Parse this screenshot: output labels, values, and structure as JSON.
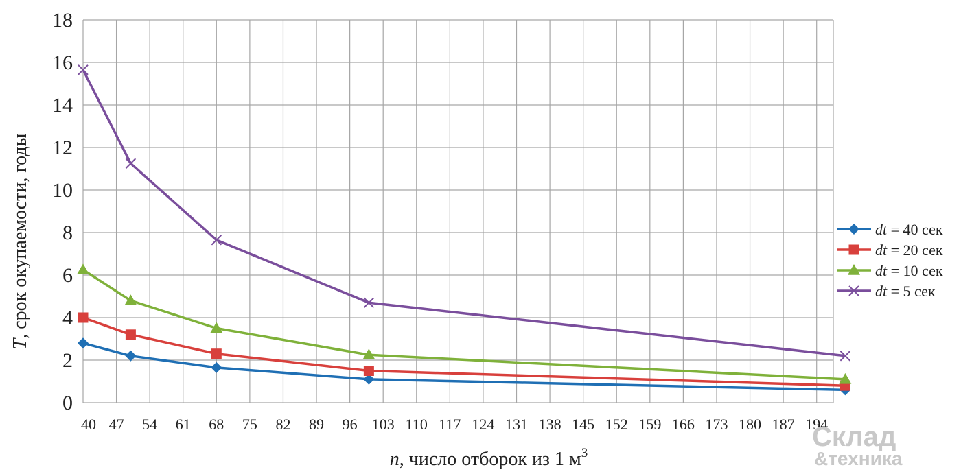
{
  "chart_data": {
    "type": "line",
    "x": [
      40,
      50,
      68,
      100,
      200
    ],
    "xticks": [
      "40",
      "47",
      "54",
      "61",
      "68",
      "75",
      "82",
      "89",
      "96",
      "103",
      "110",
      "117",
      "124",
      "131",
      "138",
      "145",
      "152",
      "159",
      "166",
      "173",
      "180",
      "187",
      "194"
    ],
    "yticks": [
      "0",
      "2",
      "4",
      "6",
      "8",
      "10",
      "12",
      "14",
      "16",
      "18"
    ],
    "ylim": [
      0,
      18
    ],
    "xlabel": {
      "var": "n",
      "text": ", число отборок из 1 м",
      "sup": "3"
    },
    "ylabel": {
      "var": "T",
      "text": ", срок окупаемости, годы"
    },
    "grid": true,
    "legend_position": "right",
    "series": [
      {
        "name_var": "dt",
        "name_text": " = 40 сек",
        "color": "#1f6fb4",
        "marker": "diamond",
        "values": [
          2.8,
          2.2,
          1.65,
          1.1,
          0.6
        ]
      },
      {
        "name_var": "dt",
        "name_text": " = 20 сек",
        "color": "#d8403c",
        "marker": "square",
        "values": [
          4.0,
          3.2,
          2.3,
          1.5,
          0.8
        ]
      },
      {
        "name_var": "dt",
        "name_text": " = 10 сек",
        "color": "#7fb13a",
        "marker": "triangle",
        "values": [
          6.25,
          4.8,
          3.5,
          2.25,
          1.1
        ]
      },
      {
        "name_var": "dt",
        "name_text": " = 5 сек",
        "color": "#7a4e9c",
        "marker": "x",
        "values": [
          15.65,
          11.25,
          7.65,
          4.7,
          2.2
        ]
      }
    ]
  },
  "watermark": {
    "line1": "Склад",
    "line2": "&техника"
  }
}
